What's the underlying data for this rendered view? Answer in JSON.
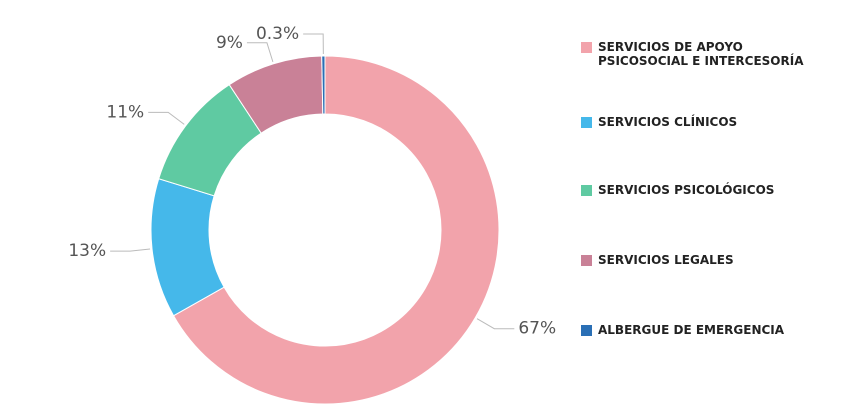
{
  "chart_data": {
    "type": "donut",
    "categories": [
      "SERVICIOS DE APOYO PSICOSOCIAL E INTERCESORÍA",
      "SERVICIOS CLÍNICOS",
      "SERVICIOS PSICOLÓGICOS",
      "SERVICIOS LEGALES",
      "ALBERGUE DE EMERGENCIA"
    ],
    "values": [
      67,
      13,
      11,
      9,
      0.3
    ],
    "value_labels": [
      "67%",
      "13%",
      "11%",
      "9%",
      "0.3%"
    ],
    "colors": [
      "#f2a3ab",
      "#45b8ea",
      "#5fcaa2",
      "#c98197",
      "#2a6fb5"
    ],
    "legend": "right"
  }
}
